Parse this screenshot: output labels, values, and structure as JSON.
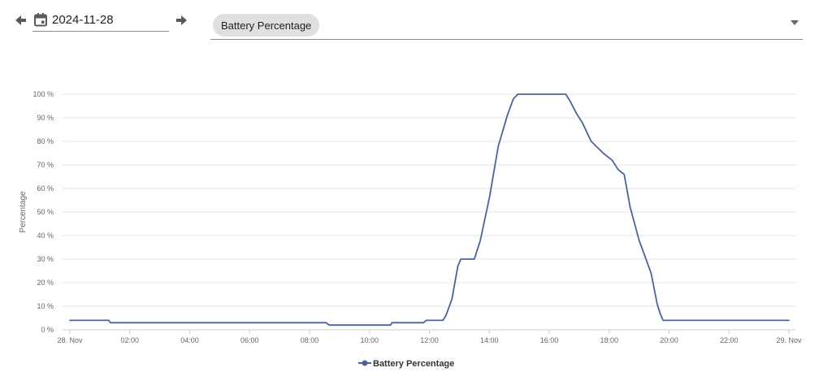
{
  "toolbar": {
    "date": "2024-11-28",
    "selected_metric": "Battery Percentage",
    "icons": {
      "prev": "arrow-left-icon",
      "next": "arrow-right-icon",
      "calendar": "calendar-icon",
      "dropdown": "chevron-down-icon"
    }
  },
  "colors": {
    "series": "#4a6497",
    "grid": "#e6e6e6",
    "axis": "#cccccc"
  },
  "chart_data": {
    "type": "line",
    "title": "",
    "ylabel": "Percentage",
    "xlabel": "",
    "x_unit": "hours",
    "xlim": [
      0,
      24
    ],
    "ylim": [
      0,
      100
    ],
    "grid": true,
    "legend_position": "bottom-center",
    "yticks": [
      0,
      10,
      20,
      30,
      40,
      50,
      60,
      70,
      80,
      90,
      100
    ],
    "ytick_labels": [
      "0 %",
      "10 %",
      "20 %",
      "30 %",
      "40 %",
      "50 %",
      "60 %",
      "70 %",
      "80 %",
      "90 %",
      "100 %"
    ],
    "xticks": [
      0,
      2,
      4,
      6,
      8,
      10,
      12,
      14,
      16,
      18,
      20,
      22,
      24
    ],
    "xtick_labels": [
      "28. Nov",
      "02:00",
      "04:00",
      "06:00",
      "08:00",
      "10:00",
      "12:00",
      "14:00",
      "16:00",
      "18:00",
      "20:00",
      "22:00",
      "29. Nov"
    ],
    "series": [
      {
        "name": "Battery Percentage",
        "x": [
          0,
          1.3,
          1.35,
          8.55,
          8.65,
          10.7,
          10.75,
          11.8,
          11.9,
          12.45,
          12.55,
          12.75,
          12.95,
          13.05,
          13.15,
          13.5,
          13.7,
          14.0,
          14.3,
          14.6,
          14.8,
          14.95,
          16.55,
          16.7,
          16.9,
          17.1,
          17.4,
          17.8,
          17.9,
          18.1,
          18.3,
          18.5,
          18.7,
          19.0,
          19.4,
          19.6,
          19.7,
          19.8,
          20.5,
          24
        ],
        "y": [
          4,
          4,
          3,
          3,
          2,
          2,
          3,
          3,
          4,
          4,
          6,
          13,
          27,
          30,
          30,
          30,
          38,
          56,
          78,
          91,
          98,
          100,
          100,
          97,
          92,
          88,
          80,
          75,
          74,
          72,
          68,
          66,
          52,
          38,
          24,
          11,
          7,
          4,
          4,
          4
        ]
      }
    ]
  }
}
